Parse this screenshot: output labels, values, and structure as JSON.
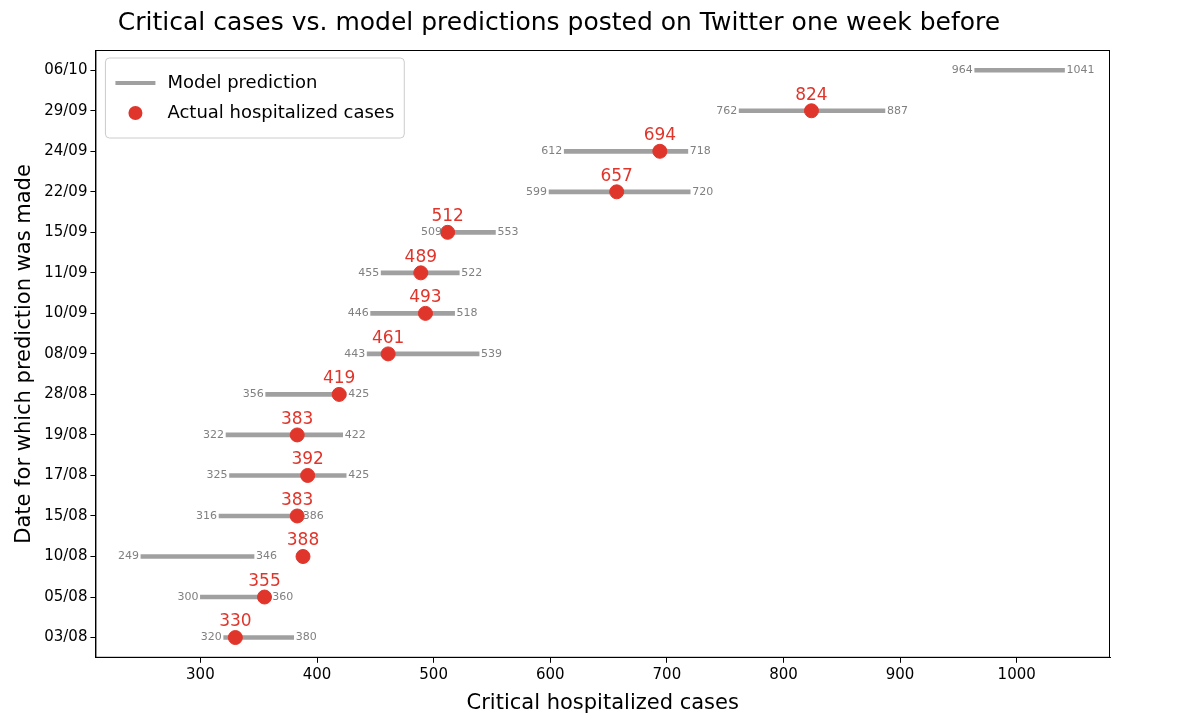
{
  "chart_data": {
    "type": "bar",
    "orientation": "horizontal",
    "title": "Critical cases vs. model predictions posted on Twitter one week before",
    "x_label": "Critical hospitalized cases",
    "y_label": "Date for which prediction was made",
    "categories": [
      "06/10",
      "29/09",
      "24/09",
      "22/09",
      "15/09",
      "11/09",
      "10/09",
      "08/09",
      "28/08",
      "19/08",
      "17/08",
      "15/08",
      "10/08",
      "05/08",
      "03/08"
    ],
    "series": [
      {
        "name": "Model prediction",
        "type": "bar",
        "color": "#a0a0a0",
        "values": [
          [
            964,
            1041
          ],
          [
            762,
            887
          ],
          [
            612,
            718
          ],
          [
            599,
            720
          ],
          [
            509,
            553
          ],
          [
            455,
            522
          ],
          [
            446,
            518
          ],
          [
            443,
            539
          ],
          [
            356,
            425
          ],
          [
            322,
            422
          ],
          [
            325,
            425
          ],
          [
            316,
            386
          ],
          [
            249,
            346
          ],
          [
            300,
            360
          ],
          [
            320,
            380
          ]
        ]
      },
      {
        "name": "Actual hospitalized cases",
        "type": "scatter",
        "color": "#e0352b",
        "marker": "circle",
        "values": [
          null,
          824,
          694,
          657,
          512,
          489,
          493,
          461,
          419,
          383,
          392,
          383,
          388,
          355,
          330
        ]
      }
    ],
    "xlim": [
      210,
      1080
    ],
    "xticks": [
      300,
      400,
      500,
      600,
      700,
      800,
      900,
      1000
    ],
    "grid": false,
    "legend": "upper left",
    "data_labels": true
  }
}
